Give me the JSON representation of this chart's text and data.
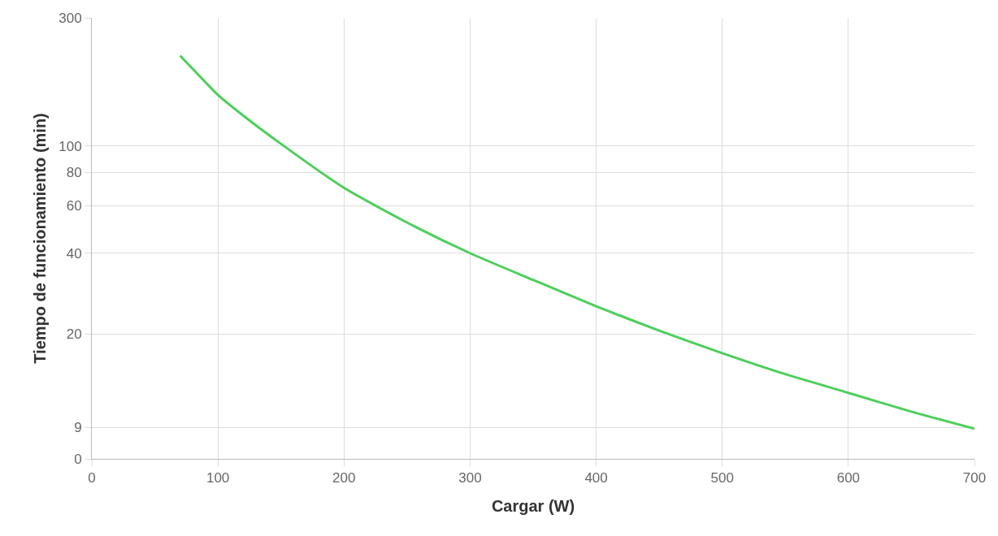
{
  "chart_data": {
    "type": "line",
    "xlabel": "Cargar (W)",
    "ylabel": "Tiempo de funcionamiento (min)",
    "x": [
      70,
      80,
      100,
      120,
      150,
      200,
      250,
      300,
      350,
      400,
      450,
      500,
      550,
      600,
      650,
      700
    ],
    "series": [
      {
        "color": "#4ccf5a",
        "values": [
          217,
          194,
          155,
          130,
          102,
          70,
          52,
          40,
          31.8,
          25.4,
          20.6,
          17,
          14.2,
          12.1,
          10.3,
          8.9
        ]
      }
    ],
    "log": "y",
    "xlim": [
      0,
      700
    ],
    "xticks": [
      0,
      100,
      200,
      300,
      400,
      500,
      600,
      700
    ],
    "ylim": [
      0,
      300
    ],
    "yticks": [
      0,
      9,
      20,
      40,
      60,
      80,
      100,
      300
    ],
    "grid": true,
    "marker": "none",
    "line_style": "solid"
  }
}
